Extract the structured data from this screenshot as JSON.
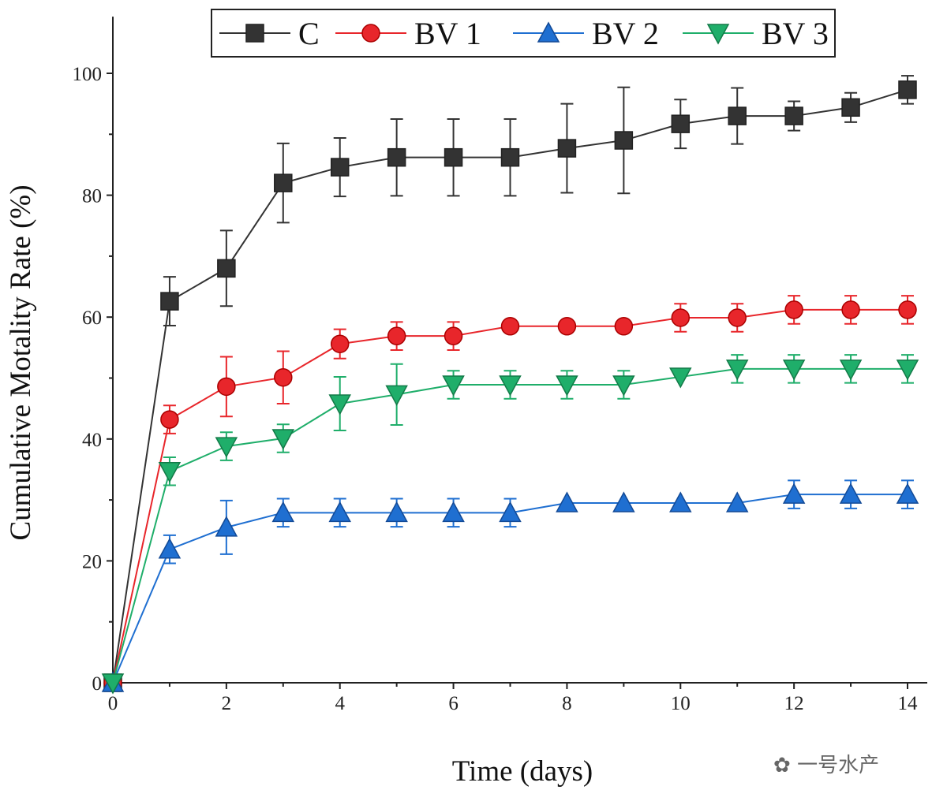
{
  "chart_data": {
    "type": "line",
    "title": "",
    "xlabel": "Time (days)",
    "ylabel": "Cumulative Motality Rate (%)",
    "xlim": [
      0,
      14
    ],
    "ylim": [
      0,
      108
    ],
    "xticks": [
      0,
      2,
      4,
      6,
      8,
      10,
      12,
      14
    ],
    "yticks": [
      0,
      20,
      40,
      60,
      80,
      100
    ],
    "grid": false,
    "legend_placement": "top",
    "x": [
      0,
      1,
      2,
      3,
      4,
      5,
      6,
      7,
      8,
      9,
      10,
      11,
      12,
      13,
      14
    ],
    "series": [
      {
        "name": "C",
        "color": "#333333",
        "marker": "square",
        "values": [
          0,
          62.6,
          68.0,
          82.0,
          84.6,
          86.2,
          86.2,
          86.2,
          87.7,
          89.0,
          91.7,
          93.0,
          93.0,
          94.4,
          97.3
        ],
        "errors": [
          0,
          4.0,
          6.2,
          6.5,
          4.8,
          6.3,
          6.3,
          6.3,
          7.3,
          8.7,
          4.0,
          4.6,
          2.4,
          2.4,
          2.3
        ]
      },
      {
        "name": "BV 1",
        "color": "#e8262b",
        "marker": "circle",
        "values": [
          0,
          43.2,
          48.6,
          50.1,
          55.6,
          56.9,
          56.9,
          58.5,
          58.5,
          58.5,
          59.9,
          59.9,
          61.2,
          61.2,
          61.2
        ],
        "errors": [
          0,
          2.3,
          4.9,
          4.3,
          2.4,
          2.3,
          2.3,
          0.5,
          0.5,
          0.5,
          2.3,
          2.3,
          2.3,
          2.3,
          2.3
        ]
      },
      {
        "name": "BV 2",
        "color": "#1f6fd1",
        "marker": "triangle-up",
        "values": [
          0,
          21.9,
          25.5,
          27.9,
          27.9,
          27.9,
          27.9,
          27.9,
          29.5,
          29.5,
          29.5,
          29.5,
          30.9,
          30.9,
          30.9
        ],
        "errors": [
          0,
          2.3,
          4.4,
          2.3,
          2.3,
          2.3,
          2.3,
          2.3,
          0.5,
          0.5,
          0.5,
          0.5,
          2.3,
          2.3,
          2.3
        ]
      },
      {
        "name": "BV 3",
        "color": "#1fae6a",
        "marker": "triangle-down",
        "values": [
          0,
          34.7,
          38.8,
          40.1,
          45.8,
          47.3,
          48.9,
          48.9,
          48.9,
          48.9,
          50.2,
          51.5,
          51.5,
          51.5,
          51.5
        ],
        "errors": [
          0,
          2.3,
          2.3,
          2.3,
          4.4,
          5.0,
          2.3,
          2.3,
          2.3,
          2.3,
          0.5,
          2.3,
          2.3,
          2.3,
          2.3
        ]
      }
    ]
  },
  "watermark": "一号水产"
}
